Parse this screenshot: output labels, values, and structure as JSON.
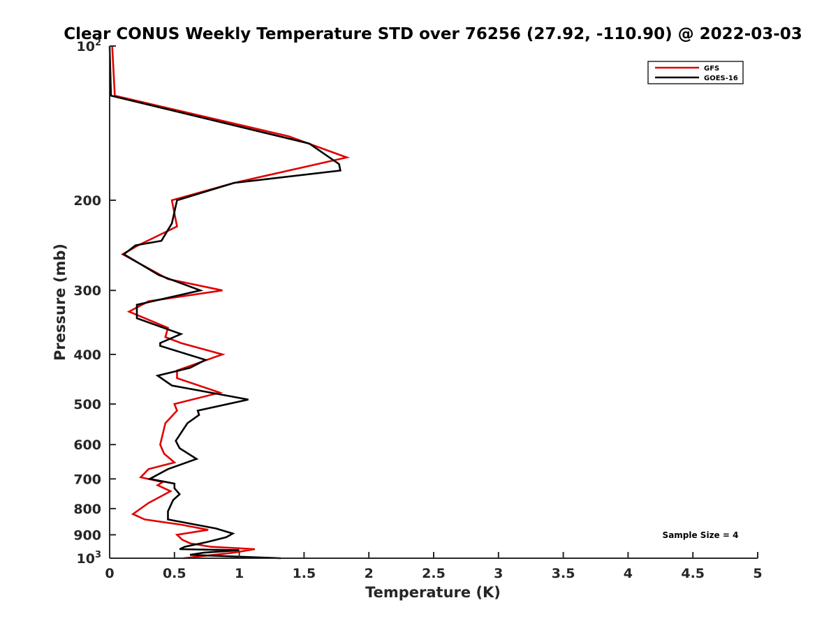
{
  "chart_data": {
    "type": "line",
    "title": "Clear CONUS Weekly Temperature STD over 76256 (27.92, -110.90) @ 2022-03-03",
    "xlabel": "Temperature (K)",
    "ylabel": "Pressure (mb)",
    "xlim": [
      0,
      5
    ],
    "ylim": [
      100,
      1000
    ],
    "y_scale": "log",
    "y_reversed": true,
    "x_ticks": [
      "0",
      "0.5",
      "1",
      "1.5",
      "2",
      "2.5",
      "3",
      "3.5",
      "4",
      "4.5",
      "5"
    ],
    "x_tick_values": [
      0,
      0.5,
      1,
      1.5,
      2,
      2.5,
      3,
      3.5,
      4,
      4.5,
      5
    ],
    "y_ticks": [
      {
        "value": 100,
        "base": "10",
        "exp": "2"
      },
      {
        "value": 200,
        "label": "200"
      },
      {
        "value": 300,
        "label": "300"
      },
      {
        "value": 400,
        "label": "400"
      },
      {
        "value": 500,
        "label": "500"
      },
      {
        "value": 600,
        "label": "600"
      },
      {
        "value": 700,
        "label": "700"
      },
      {
        "value": 800,
        "label": "800"
      },
      {
        "value": 900,
        "label": "900"
      },
      {
        "value": 1000,
        "base": "10",
        "exp": "3"
      }
    ],
    "grid": false,
    "legend_position": "top-right",
    "annotation": "Sample Size = 4",
    "series": [
      {
        "name": "GFS",
        "color": "#e00000",
        "points": [
          [
            0.02,
            100
          ],
          [
            0.04,
            125
          ],
          [
            1.38,
            150
          ],
          [
            1.83,
            165
          ],
          [
            0.96,
            185
          ],
          [
            0.48,
            200
          ],
          [
            0.52,
            225
          ],
          [
            0.22,
            245
          ],
          [
            0.1,
            255
          ],
          [
            0.45,
            285
          ],
          [
            0.87,
            300
          ],
          [
            0.3,
            315
          ],
          [
            0.15,
            330
          ],
          [
            0.45,
            355
          ],
          [
            0.43,
            370
          ],
          [
            0.55,
            380
          ],
          [
            0.87,
            400
          ],
          [
            0.75,
            410
          ],
          [
            0.52,
            430
          ],
          [
            0.52,
            445
          ],
          [
            0.85,
            475
          ],
          [
            0.5,
            500
          ],
          [
            0.52,
            515
          ],
          [
            0.43,
            545
          ],
          [
            0.39,
            600
          ],
          [
            0.42,
            625
          ],
          [
            0.5,
            650
          ],
          [
            0.3,
            670
          ],
          [
            0.24,
            695
          ],
          [
            0.41,
            710
          ],
          [
            0.37,
            720
          ],
          [
            0.47,
            740
          ],
          [
            0.3,
            780
          ],
          [
            0.18,
            820
          ],
          [
            0.27,
            840
          ],
          [
            0.55,
            860
          ],
          [
            0.76,
            880
          ],
          [
            0.52,
            900
          ],
          [
            0.56,
            920
          ],
          [
            0.62,
            935
          ],
          [
            0.78,
            950
          ],
          [
            1.12,
            960
          ],
          [
            0.96,
            975
          ],
          [
            0.57,
            1000
          ]
        ]
      },
      {
        "name": "GOES-16",
        "color": "#000000",
        "points": [
          [
            0.0,
            100
          ],
          [
            0.01,
            125
          ],
          [
            1.54,
            155
          ],
          [
            1.77,
            170
          ],
          [
            1.78,
            175
          ],
          [
            0.96,
            185
          ],
          [
            0.52,
            200
          ],
          [
            0.48,
            222
          ],
          [
            0.4,
            240
          ],
          [
            0.2,
            245
          ],
          [
            0.11,
            255
          ],
          [
            0.38,
            280
          ],
          [
            0.7,
            300
          ],
          [
            0.21,
            320
          ],
          [
            0.21,
            340
          ],
          [
            0.55,
            365
          ],
          [
            0.39,
            380
          ],
          [
            0.39,
            385
          ],
          [
            0.74,
            410
          ],
          [
            0.62,
            425
          ],
          [
            0.37,
            440
          ],
          [
            0.48,
            460
          ],
          [
            1.07,
            490
          ],
          [
            0.68,
            515
          ],
          [
            0.69,
            525
          ],
          [
            0.6,
            545
          ],
          [
            0.51,
            590
          ],
          [
            0.54,
            610
          ],
          [
            0.67,
            640
          ],
          [
            0.45,
            670
          ],
          [
            0.31,
            700
          ],
          [
            0.5,
            715
          ],
          [
            0.5,
            730
          ],
          [
            0.54,
            750
          ],
          [
            0.49,
            770
          ],
          [
            0.45,
            810
          ],
          [
            0.45,
            840
          ],
          [
            0.82,
            875
          ],
          [
            0.95,
            895
          ],
          [
            0.9,
            910
          ],
          [
            0.75,
            930
          ],
          [
            0.58,
            950
          ],
          [
            0.54,
            960
          ],
          [
            1.0,
            965
          ],
          [
            0.73,
            975
          ],
          [
            0.62,
            985
          ],
          [
            1.32,
            1000
          ]
        ]
      }
    ]
  }
}
